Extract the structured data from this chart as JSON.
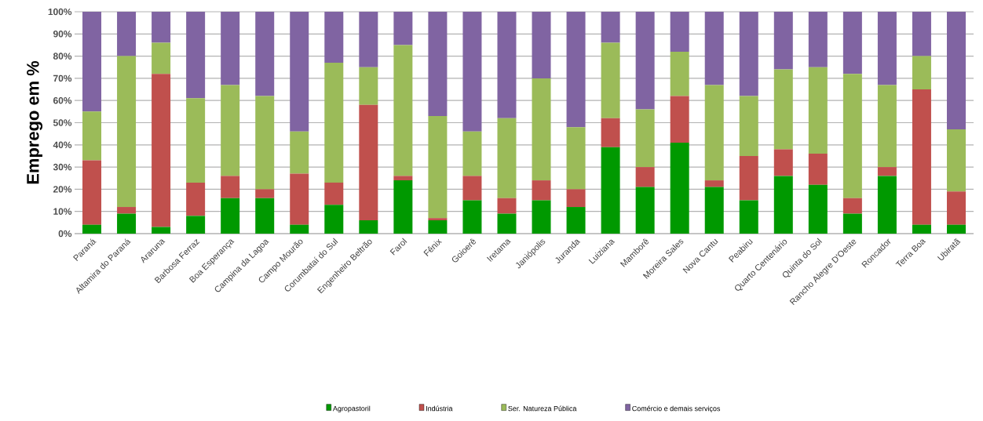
{
  "chart_data": {
    "type": "bar",
    "stacked": true,
    "ylabel": "Emprego em %",
    "categories": [
      "Paraná",
      "Altamira do Paraná",
      "Araruna",
      "Barbosa Ferraz",
      "Boa Esperança",
      "Campina da Lagoa",
      "Campo Mourão",
      "Corumbataí do Sul",
      "Engenheiro Beltrão",
      "Farol",
      "Fênix",
      "Goioerê",
      "Iretama",
      "Janiópolis",
      "Juranda",
      "Luiziana",
      "Mamborê",
      "Moreira Sales",
      "Nova Cantu",
      "Peabiru",
      "Quarto Centenário",
      "Quinta do Sol",
      "Rancho Alegre D'Oeste",
      "Roncador",
      "Terra Boa",
      "Ubiratã"
    ],
    "series": [
      {
        "name": "Agropastoril",
        "color": "#009900",
        "values": [
          4,
          9,
          3,
          8,
          16,
          16,
          4,
          13,
          6,
          24,
          6,
          15,
          9,
          15,
          12,
          39,
          21,
          41,
          21,
          15,
          26,
          22,
          9,
          26,
          4,
          4
        ]
      },
      {
        "name": "Indústria",
        "color": "#c0504d",
        "values": [
          29,
          3,
          69,
          15,
          10,
          4,
          23,
          10,
          52,
          2,
          1,
          11,
          7,
          9,
          8,
          13,
          9,
          21,
          3,
          20,
          12,
          14,
          7,
          4,
          61,
          15
        ]
      },
      {
        "name": "Ser. Natureza Pública",
        "color": "#9bbb59",
        "values": [
          22,
          68,
          14,
          38,
          41,
          42,
          19,
          54,
          17,
          59,
          46,
          20,
          36,
          46,
          28,
          34,
          26,
          20,
          43,
          27,
          36,
          39,
          56,
          37,
          15,
          28
        ]
      },
      {
        "name": "Comércio e demais serviços",
        "color": "#8064a2",
        "values": [
          45,
          20,
          14,
          39,
          33,
          38,
          54,
          23,
          25,
          15,
          47,
          54,
          48,
          30,
          52,
          14,
          44,
          18,
          33,
          38,
          26,
          25,
          28,
          33,
          20,
          53
        ]
      }
    ],
    "ylim": [
      0,
      100
    ],
    "yticks": [
      {
        "value": 0,
        "label": "0%"
      },
      {
        "value": 10,
        "label": "10%"
      },
      {
        "value": 20,
        "label": "20%"
      },
      {
        "value": 30,
        "label": "30%"
      },
      {
        "value": 40,
        "label": "40%"
      },
      {
        "value": 50,
        "label": "50%"
      },
      {
        "value": 60,
        "label": "60%"
      },
      {
        "value": 70,
        "label": "70%"
      },
      {
        "value": 80,
        "label": "80%"
      },
      {
        "value": 90,
        "label": "90%"
      },
      {
        "value": 100,
        "label": "100%"
      }
    ],
    "grid": "y",
    "legend": "bottom"
  }
}
